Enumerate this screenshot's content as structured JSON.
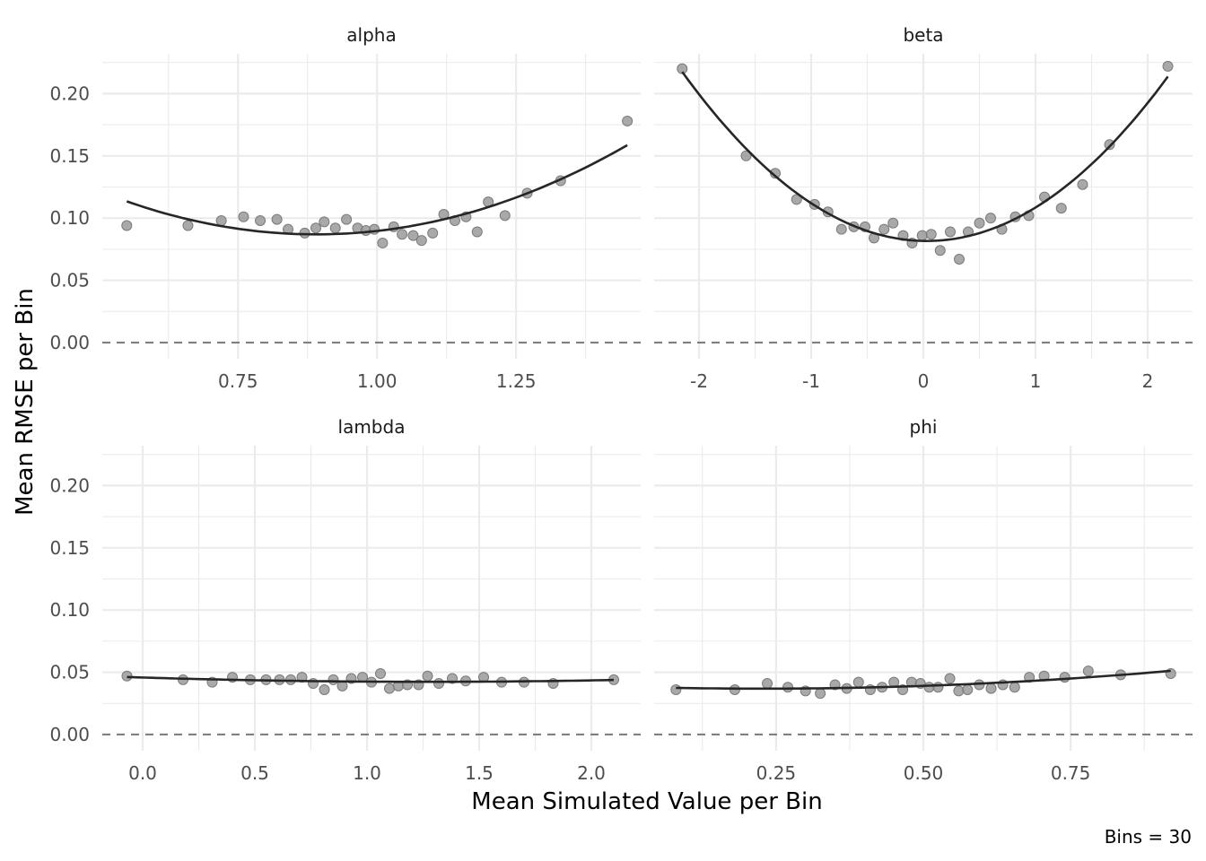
{
  "chart_data": {
    "type": "scatter",
    "xlabel": "Mean Simulated Value per Bin",
    "ylabel": "Mean RMSE per Bin",
    "caption": "Bins = 30",
    "reference_line": {
      "y": 0,
      "style": "dashed"
    },
    "shared_y": {
      "ylim": [
        -0.013,
        0.232
      ],
      "ticks": [
        0.0,
        0.05,
        0.1,
        0.15,
        0.2
      ],
      "tick_labels": [
        "0.00",
        "0.05",
        "0.10",
        "0.15",
        "0.20"
      ]
    },
    "grid": true,
    "trend": "smooth",
    "panels": [
      {
        "title": "alpha",
        "xlim": [
          0.506,
          1.474
        ],
        "xticks": [
          0.75,
          1.0,
          1.25
        ],
        "xtick_labels": [
          "0.75",
          "1.00",
          "1.25"
        ],
        "x": [
          0.55,
          0.66,
          0.72,
          0.76,
          0.79,
          0.82,
          0.84,
          0.87,
          0.89,
          0.905,
          0.925,
          0.945,
          0.965,
          0.98,
          0.995,
          1.01,
          1.03,
          1.045,
          1.065,
          1.08,
          1.1,
          1.12,
          1.14,
          1.16,
          1.18,
          1.2,
          1.23,
          1.27,
          1.33,
          1.45
        ],
        "y": [
          0.094,
          0.094,
          0.098,
          0.101,
          0.098,
          0.099,
          0.091,
          0.088,
          0.092,
          0.097,
          0.092,
          0.099,
          0.092,
          0.09,
          0.091,
          0.08,
          0.093,
          0.087,
          0.086,
          0.082,
          0.088,
          0.103,
          0.098,
          0.101,
          0.089,
          0.113,
          0.102,
          0.12,
          0.13,
          0.178
        ]
      },
      {
        "title": "beta",
        "xlim": [
          -2.4,
          2.4
        ],
        "xticks": [
          -2,
          -1,
          0,
          1,
          2
        ],
        "xtick_labels": [
          "-2",
          "-1",
          "0",
          "1",
          "2"
        ],
        "x": [
          -2.15,
          -1.58,
          -1.32,
          -1.13,
          -0.97,
          -0.85,
          -0.73,
          -0.62,
          -0.52,
          -0.44,
          -0.35,
          -0.27,
          -0.18,
          -0.1,
          -0.01,
          0.07,
          0.15,
          0.24,
          0.32,
          0.4,
          0.5,
          0.6,
          0.7,
          0.82,
          0.94,
          1.08,
          1.23,
          1.42,
          1.66,
          2.18
        ],
        "y": [
          0.22,
          0.15,
          0.136,
          0.115,
          0.111,
          0.105,
          0.091,
          0.093,
          0.093,
          0.084,
          0.091,
          0.096,
          0.086,
          0.08,
          0.086,
          0.087,
          0.074,
          0.089,
          0.067,
          0.089,
          0.096,
          0.1,
          0.091,
          0.101,
          0.102,
          0.117,
          0.108,
          0.127,
          0.159,
          0.222
        ]
      },
      {
        "title": "lambda",
        "xlim": [
          -0.18,
          2.22
        ],
        "xticks": [
          0.0,
          0.5,
          1.0,
          1.5,
          2.0
        ],
        "xtick_labels": [
          "0.0",
          "0.5",
          "1.0",
          "1.5",
          "2.0"
        ],
        "x": [
          -0.07,
          0.18,
          0.31,
          0.4,
          0.48,
          0.55,
          0.61,
          0.66,
          0.71,
          0.76,
          0.81,
          0.85,
          0.89,
          0.93,
          0.98,
          1.02,
          1.06,
          1.1,
          1.14,
          1.18,
          1.23,
          1.27,
          1.32,
          1.38,
          1.44,
          1.52,
          1.6,
          1.7,
          1.83,
          2.1
        ],
        "y": [
          0.047,
          0.044,
          0.042,
          0.046,
          0.044,
          0.044,
          0.044,
          0.044,
          0.046,
          0.041,
          0.036,
          0.044,
          0.039,
          0.045,
          0.046,
          0.042,
          0.049,
          0.037,
          0.039,
          0.04,
          0.04,
          0.047,
          0.041,
          0.045,
          0.043,
          0.046,
          0.042,
          0.042,
          0.041,
          0.044
        ]
      },
      {
        "title": "phi",
        "xlim": [
          0.043,
          0.957
        ],
        "xticks": [
          0.25,
          0.5,
          0.75
        ],
        "xtick_labels": [
          "0.25",
          "0.50",
          "0.75"
        ],
        "x": [
          0.08,
          0.18,
          0.235,
          0.27,
          0.3,
          0.325,
          0.35,
          0.37,
          0.39,
          0.41,
          0.43,
          0.45,
          0.465,
          0.48,
          0.495,
          0.51,
          0.525,
          0.545,
          0.56,
          0.575,
          0.595,
          0.615,
          0.635,
          0.655,
          0.68,
          0.705,
          0.74,
          0.78,
          0.835,
          0.92
        ],
        "y": [
          0.036,
          0.036,
          0.041,
          0.038,
          0.035,
          0.033,
          0.04,
          0.037,
          0.042,
          0.036,
          0.038,
          0.042,
          0.036,
          0.042,
          0.041,
          0.038,
          0.038,
          0.045,
          0.035,
          0.036,
          0.04,
          0.037,
          0.04,
          0.038,
          0.046,
          0.047,
          0.046,
          0.051,
          0.048,
          0.049
        ]
      }
    ]
  }
}
